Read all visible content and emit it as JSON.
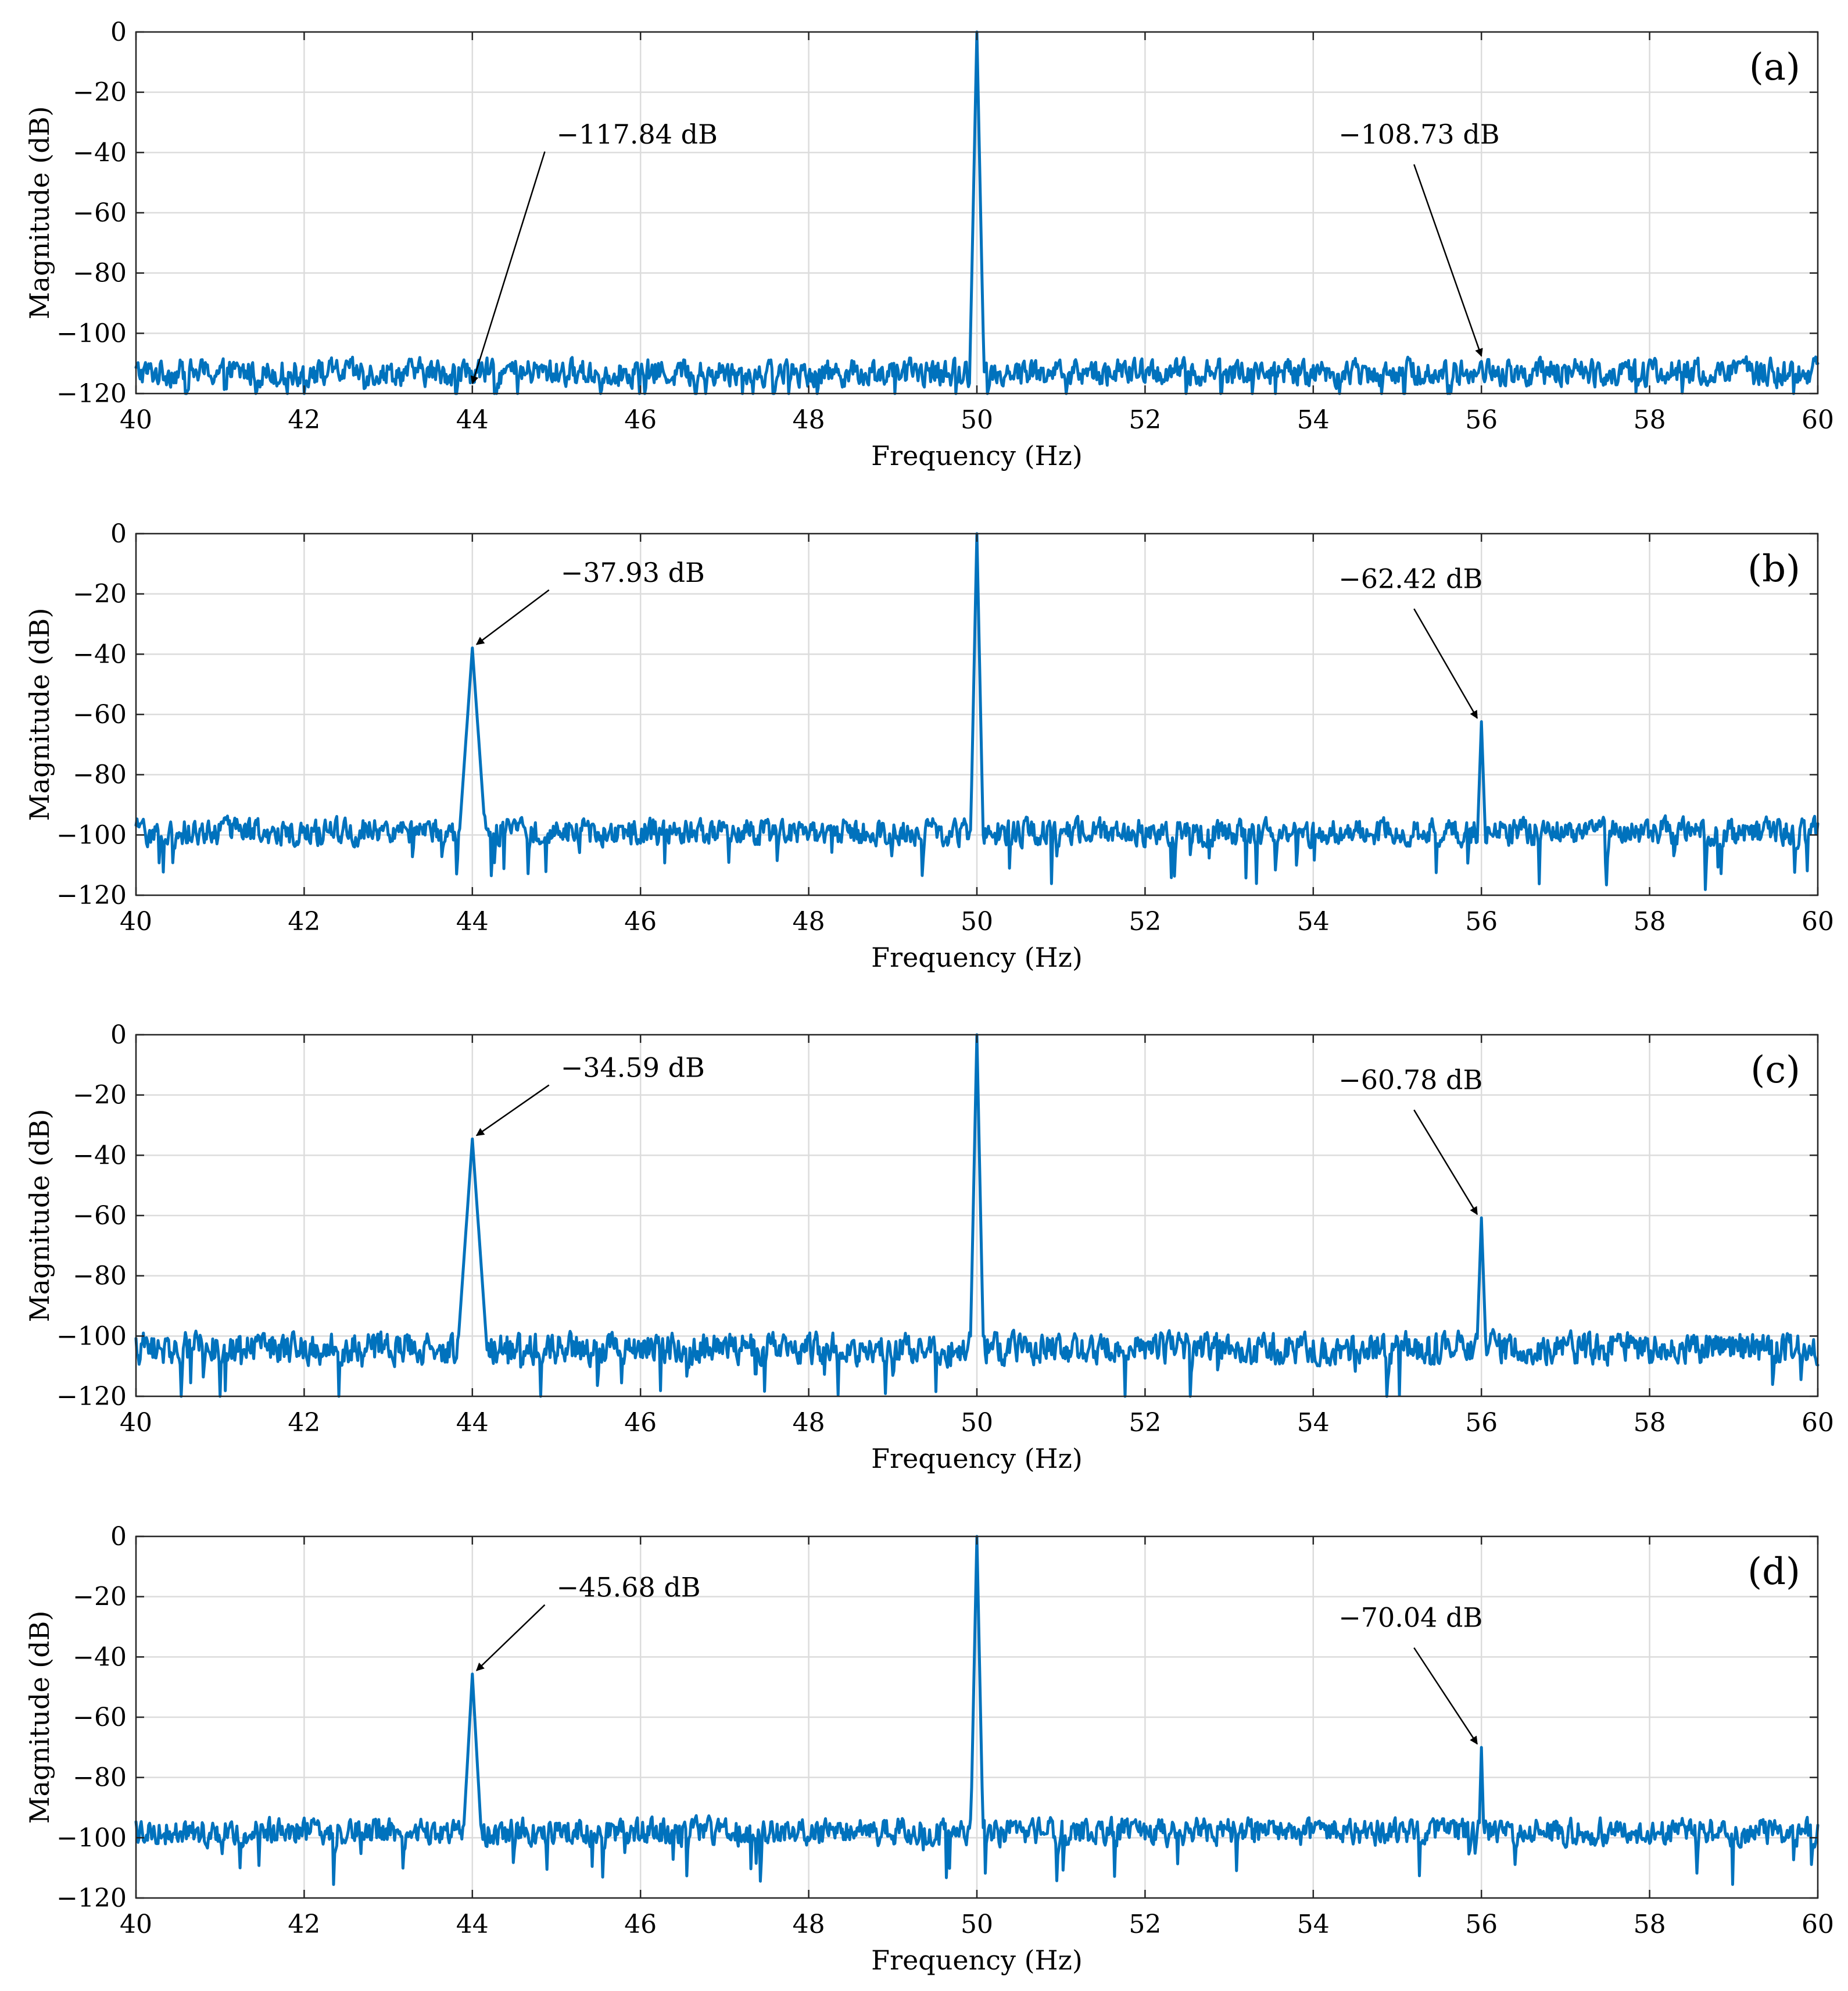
{
  "chart_data": [
    {
      "type": "line",
      "panel_label": "(a)",
      "xlabel": "Frequency (Hz)",
      "ylabel": "Magnitude (dB)",
      "xlim": [
        40,
        60
      ],
      "ylim": [
        -120,
        0
      ],
      "xticks": [
        40,
        42,
        44,
        46,
        48,
        50,
        52,
        54,
        56,
        58,
        60
      ],
      "yticks": [
        0,
        -20,
        -40,
        -60,
        -80,
        -100,
        -120
      ],
      "xtick_labels": [
        "40",
        "42",
        "44",
        "46",
        "48",
        "50",
        "52",
        "54",
        "56",
        "58",
        "60"
      ],
      "ytick_labels": [
        "0",
        "−20",
        "−40",
        "−60",
        "−80",
        "−100",
        "−120"
      ],
      "grid": true,
      "color": "#0072BD",
      "noise_floor": -113,
      "noise_amplitude": 6,
      "peaks": [
        {
          "x": 50,
          "y": 0,
          "width": 0.03
        }
      ],
      "annotations": [
        {
          "text": "−117.84 dB",
          "x": 44,
          "y": -117.84,
          "text_x": 45.0,
          "text_y": -37
        },
        {
          "text": "−108.73 dB",
          "x": 56,
          "y": -108.73,
          "text_x": 54.3,
          "text_y": -37
        }
      ]
    },
    {
      "type": "line",
      "panel_label": "(b)",
      "xlabel": "Frequency (Hz)",
      "ylabel": "Magnitude (dB)",
      "xlim": [
        40,
        60
      ],
      "ylim": [
        -120,
        0
      ],
      "xticks": [
        40,
        42,
        44,
        46,
        48,
        50,
        52,
        54,
        56,
        58,
        60
      ],
      "yticks": [
        0,
        -20,
        -40,
        -60,
        -80,
        -100,
        -120
      ],
      "xtick_labels": [
        "40",
        "42",
        "44",
        "46",
        "48",
        "50",
        "52",
        "54",
        "56",
        "58",
        "60"
      ],
      "ytick_labels": [
        "0",
        "−20",
        "−40",
        "−60",
        "−80",
        "−100",
        "−120"
      ],
      "grid": true,
      "color": "#0072BD",
      "noise_floor": -99,
      "noise_amplitude": 6,
      "peaks": [
        {
          "x": 44,
          "y": -37.93,
          "width": 0.1
        },
        {
          "x": 50,
          "y": 0,
          "width": 0.03
        },
        {
          "x": 56,
          "y": -62.42,
          "width": 0.05
        }
      ],
      "annotations": [
        {
          "text": "−37.93 dB",
          "x": 44.05,
          "y": -37.93,
          "text_x": 45.05,
          "text_y": -16
        },
        {
          "text": "−62.42 dB",
          "x": 55.95,
          "y": -62.42,
          "text_x": 54.3,
          "text_y": -18
        }
      ]
    },
    {
      "type": "line",
      "panel_label": "(c)",
      "xlabel": "Frequency (Hz)",
      "ylabel": "Magnitude (dB)",
      "xlim": [
        40,
        60
      ],
      "ylim": [
        -120,
        0
      ],
      "xticks": [
        40,
        42,
        44,
        46,
        48,
        50,
        52,
        54,
        56,
        58,
        60
      ],
      "yticks": [
        0,
        -20,
        -40,
        -60,
        -80,
        -100,
        -120
      ],
      "xtick_labels": [
        "40",
        "42",
        "44",
        "46",
        "48",
        "50",
        "52",
        "54",
        "56",
        "58",
        "60"
      ],
      "ytick_labels": [
        "0",
        "−20",
        "−40",
        "−60",
        "−80",
        "−100",
        "−120"
      ],
      "grid": true,
      "color": "#0072BD",
      "noise_floor": -104,
      "noise_amplitude": 7,
      "peaks": [
        {
          "x": 44,
          "y": -34.59,
          "width": 0.1
        },
        {
          "x": 50,
          "y": 0,
          "width": 0.03
        },
        {
          "x": 56,
          "y": -60.78,
          "width": 0.05
        }
      ],
      "annotations": [
        {
          "text": "−34.59 dB",
          "x": 44.05,
          "y": -34.59,
          "text_x": 45.05,
          "text_y": -14
        },
        {
          "text": "−60.78 dB",
          "x": 55.95,
          "y": -60.78,
          "text_x": 54.3,
          "text_y": -18
        }
      ]
    },
    {
      "type": "line",
      "panel_label": "(d)",
      "xlabel": "Frequency (Hz)",
      "ylabel": "Magnitude (dB)",
      "xlim": [
        40,
        60
      ],
      "ylim": [
        -120,
        0
      ],
      "xticks": [
        40,
        42,
        44,
        46,
        48,
        50,
        52,
        54,
        56,
        58,
        60
      ],
      "yticks": [
        0,
        -20,
        -40,
        -60,
        -80,
        -100,
        -120
      ],
      "xtick_labels": [
        "40",
        "42",
        "44",
        "46",
        "48",
        "50",
        "52",
        "54",
        "56",
        "58",
        "60"
      ],
      "ytick_labels": [
        "0",
        "−20",
        "−40",
        "−60",
        "−80",
        "−100",
        "−120"
      ],
      "grid": true,
      "color": "#0072BD",
      "noise_floor": -98,
      "noise_amplitude": 6,
      "peaks": [
        {
          "x": 44,
          "y": -45.68,
          "width": 0.08
        },
        {
          "x": 50,
          "y": 0,
          "width": 0.03
        },
        {
          "x": 56,
          "y": -70.04,
          "width": 0.04
        }
      ],
      "annotations": [
        {
          "text": "−45.68 dB",
          "x": 44.05,
          "y": -45.68,
          "text_x": 45.0,
          "text_y": -20
        },
        {
          "text": "−70.04 dB",
          "x": 55.95,
          "y": -70.04,
          "text_x": 54.3,
          "text_y": -30
        }
      ]
    }
  ]
}
